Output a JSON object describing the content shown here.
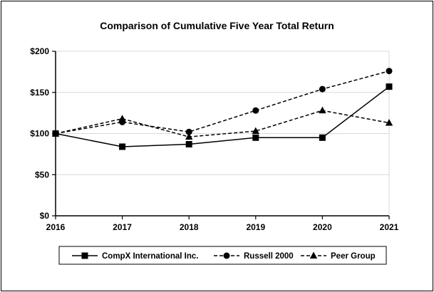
{
  "chart_data": {
    "type": "line",
    "title": "Comparison of Cumulative Five Year Total Return",
    "xlabel": "",
    "ylabel": "",
    "categories": [
      "2016",
      "2017",
      "2018",
      "2019",
      "2020",
      "2021"
    ],
    "ylim": [
      0,
      200
    ],
    "yticks": [
      0,
      50,
      100,
      150,
      200
    ],
    "ytick_labels": [
      "$0",
      "$50",
      "$100",
      "$150",
      "$200"
    ],
    "grid": "horizontal",
    "legend": "bottom",
    "series": [
      {
        "name": "CompX International Inc.",
        "marker": "square",
        "dash": "solid",
        "values": [
          100,
          84,
          87,
          95,
          95,
          157
        ]
      },
      {
        "name": "Russell 2000",
        "marker": "circle",
        "dash": "dashed",
        "values": [
          100,
          114,
          102,
          128,
          154,
          176
        ]
      },
      {
        "name": "Peer Group",
        "marker": "triangle",
        "dash": "dashed",
        "values": [
          100,
          118,
          96,
          103,
          128,
          113
        ]
      }
    ]
  }
}
